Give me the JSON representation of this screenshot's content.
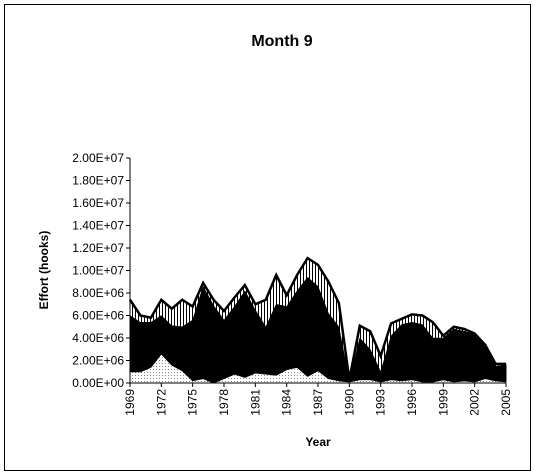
{
  "chart_data": {
    "type": "stacked-area",
    "title": "Month 9",
    "xlabel": "Year",
    "ylabel": "Effort (hooks)",
    "x": [
      1969,
      1970,
      1971,
      1972,
      1973,
      1974,
      1975,
      1976,
      1977,
      1978,
      1979,
      1980,
      1981,
      1982,
      1983,
      1984,
      1985,
      1986,
      1987,
      1988,
      1989,
      1990,
      1991,
      1992,
      1993,
      1994,
      1995,
      1996,
      1997,
      1998,
      1999,
      2000,
      2001,
      2002,
      2003,
      2004,
      2005
    ],
    "series": [
      {
        "color": "#bbbbbb",
        "pattern": "dots",
        "values": [
          1000000,
          1000000,
          1400000,
          2600000,
          1600000,
          1100000,
          200000,
          400000,
          0,
          400000,
          800000,
          500000,
          900000,
          800000,
          700000,
          1200000,
          1400000,
          600000,
          1100000,
          400000,
          200000,
          100000,
          300000,
          300000,
          100000,
          300000,
          200000,
          300000,
          100000,
          100000,
          300000,
          100000,
          200000,
          100000,
          400000,
          200000,
          100000
        ]
      },
      {
        "color": "#000000",
        "pattern": "solid",
        "values": [
          5000000,
          4400000,
          4000000,
          3400000,
          3500000,
          3900000,
          5400000,
          8200000,
          6900000,
          5200000,
          6000000,
          7700000,
          5600000,
          4200000,
          6300000,
          5600000,
          6800000,
          8800000,
          7500000,
          5800000,
          4800000,
          100000,
          3700000,
          2700000,
          900000,
          3900000,
          5000000,
          5100000,
          5100000,
          3900000,
          3700000,
          4700000,
          4400000,
          4200000,
          2800000,
          1300000,
          1500000
        ]
      },
      {
        "color": "#000000",
        "pattern": "vertical-lines",
        "values": [
          1400000,
          600000,
          400000,
          1400000,
          1500000,
          2400000,
          1200000,
          300000,
          500000,
          800000,
          800000,
          500000,
          500000,
          2400000,
          2600000,
          1000000,
          1400000,
          1700000,
          1900000,
          2800000,
          2100000,
          100000,
          1100000,
          1600000,
          1400000,
          1100000,
          500000,
          700000,
          800000,
          1400000,
          200000,
          200000,
          200000,
          100000,
          200000,
          200000,
          100000
        ]
      }
    ],
    "xlim": [
      1969,
      2005
    ],
    "xticks": [
      1969,
      1972,
      1975,
      1978,
      1981,
      1984,
      1987,
      1990,
      1993,
      1996,
      1999,
      2002,
      2005
    ],
    "ylim": [
      0,
      20000000
    ],
    "yticks": [
      {
        "value": 0,
        "label": "0.00E+00"
      },
      {
        "value": 2000000,
        "label": "2.00E+06"
      },
      {
        "value": 4000000,
        "label": "4.00E+06"
      },
      {
        "value": 6000000,
        "label": "6.00E+06"
      },
      {
        "value": 8000000,
        "label": "8.00E+06"
      },
      {
        "value": 10000000,
        "label": "1.00E+07"
      },
      {
        "value": 12000000,
        "label": "1.20E+07"
      },
      {
        "value": 14000000,
        "label": "1.40E+07"
      },
      {
        "value": 16000000,
        "label": "1.60E+07"
      },
      {
        "value": 18000000,
        "label": "1.80E+07"
      },
      {
        "value": 20000000,
        "label": "2.00E+07"
      }
    ],
    "grid": false
  }
}
